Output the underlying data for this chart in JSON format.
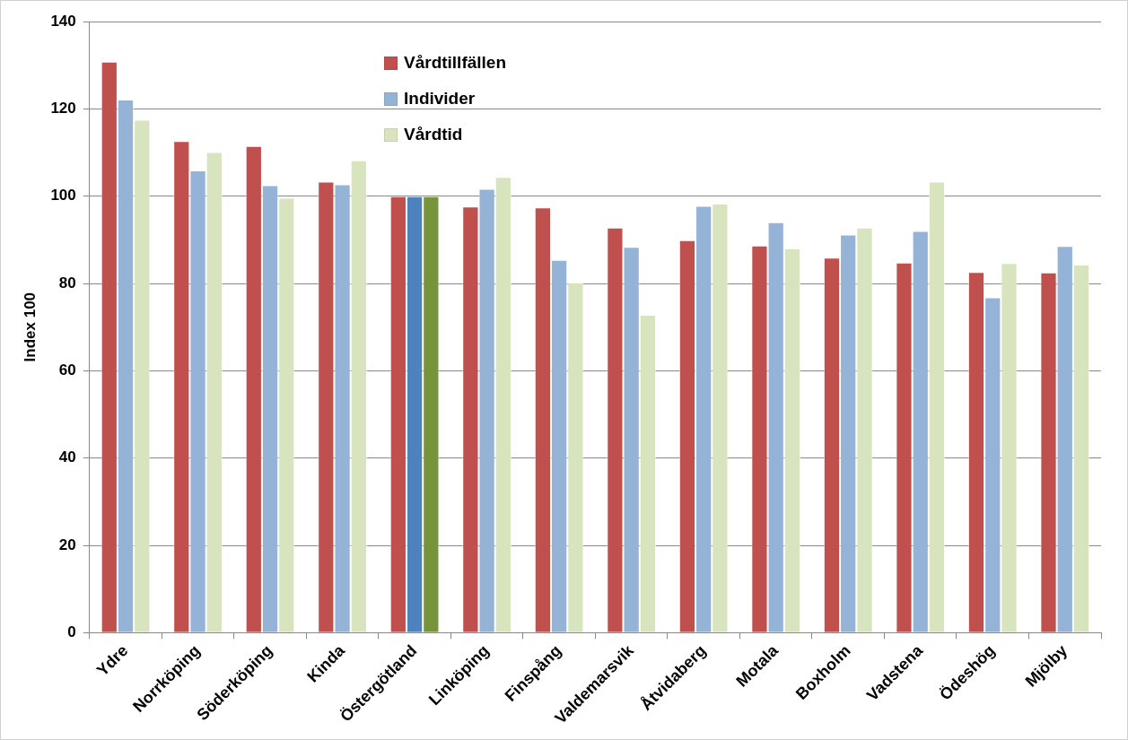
{
  "chart_data": {
    "type": "bar",
    "ylabel": "Index 100",
    "categories": [
      "Ydre",
      "Norrköping",
      "Söderköping",
      "Kinda",
      "Östergötland",
      "Linköping",
      "Finspång",
      "Valdemarsvik",
      "Åtvidaberg",
      "Motala",
      "Boxholm",
      "Vadstena",
      "Ödeshög",
      "Mjölby"
    ],
    "series": [
      {
        "name": "Vårdtillfällen",
        "color": "#c0504d",
        "values": [
          130.8,
          112.6,
          111.5,
          103.3,
          100,
          97.6,
          97.4,
          92.8,
          89.9,
          88.7,
          85.9,
          84.8,
          82.6,
          82.5
        ]
      },
      {
        "name": "Individer",
        "color": "#95b3d7",
        "colors": [
          "#95b3d7",
          "#95b3d7",
          "#95b3d7",
          "#95b3d7",
          "#4f81bd",
          "#95b3d7",
          "#95b3d7",
          "#95b3d7",
          "#95b3d7",
          "#95b3d7",
          "#95b3d7",
          "#95b3d7",
          "#95b3d7",
          "#95b3d7"
        ],
        "values": [
          122.1,
          105.9,
          102.5,
          102.7,
          100,
          101.7,
          85.4,
          88.4,
          97.8,
          94.0,
          91.2,
          92.0,
          76.8,
          88.6
        ]
      },
      {
        "name": "Vårdtid",
        "color": "#d7e4bd",
        "colors": [
          "#d7e4bd",
          "#d7e4bd",
          "#d7e4bd",
          "#d7e4bd",
          "#77933c",
          "#d7e4bd",
          "#d7e4bd",
          "#d7e4bd",
          "#d7e4bd",
          "#d7e4bd",
          "#d7e4bd",
          "#d7e4bd",
          "#d7e4bd",
          "#d7e4bd"
        ],
        "values": [
          117.5,
          110.1,
          99.6,
          108.2,
          100,
          104.4,
          80.2,
          72.8,
          98.3,
          88.0,
          92.8,
          103.3,
          84.7,
          84.3
        ]
      }
    ],
    "ylim": [
      0,
      140
    ],
    "yticks": [
      0,
      20,
      40,
      60,
      80,
      100,
      120,
      140
    ],
    "grid": "y",
    "legend": "top left"
  }
}
